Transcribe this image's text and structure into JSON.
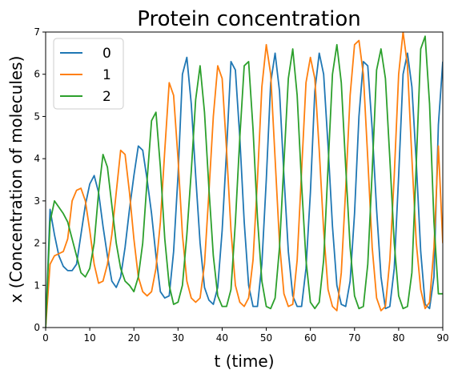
{
  "chart_data": {
    "type": "line",
    "title": "Protein concentration",
    "xlabel": "t (time)",
    "ylabel": "x (Concentration of molecules)",
    "xlim": [
      0,
      90
    ],
    "ylim": [
      0,
      7
    ],
    "xticks": [
      0,
      10,
      20,
      30,
      40,
      50,
      60,
      70,
      80,
      90
    ],
    "yticks": [
      0,
      1,
      2,
      3,
      4,
      5,
      6,
      7
    ],
    "grid": false,
    "legend_position": "top-left",
    "series": [
      {
        "name": "0",
        "color": "#1f77b4",
        "x": [
          0,
          1,
          2,
          3,
          4,
          5,
          6,
          7,
          8,
          9,
          10,
          11,
          12,
          13,
          14,
          15,
          16,
          17,
          18,
          19,
          20,
          21,
          22,
          23,
          24,
          25,
          26,
          27,
          28,
          29,
          30,
          31,
          32,
          33,
          34,
          35,
          36,
          37,
          38,
          39,
          40,
          41,
          42,
          43,
          44,
          45,
          46,
          47,
          48,
          49,
          50,
          51,
          52,
          53,
          54,
          55,
          56,
          57,
          58,
          59,
          60,
          61,
          62,
          63,
          64,
          65,
          66,
          67,
          68,
          69,
          70,
          71,
          72,
          73,
          74,
          75,
          76,
          77,
          78,
          79,
          80,
          81,
          82,
          83,
          84,
          85,
          86,
          87,
          88,
          89,
          90
        ],
        "values": [
          0,
          2.8,
          2.2,
          1.7,
          1.45,
          1.35,
          1.35,
          1.5,
          2.2,
          2.9,
          3.4,
          3.6,
          3.2,
          2.4,
          1.7,
          1.1,
          0.95,
          1.2,
          1.9,
          2.8,
          3.6,
          4.3,
          4.2,
          3.5,
          2.7,
          1.7,
          0.85,
          0.7,
          0.75,
          1.8,
          3.6,
          6.0,
          6.4,
          5.3,
          3.6,
          2.0,
          0.95,
          0.65,
          0.55,
          0.95,
          2.3,
          4.2,
          6.3,
          6.1,
          4.5,
          2.5,
          1.0,
          0.5,
          0.5,
          1.5,
          3.5,
          5.8,
          6.5,
          5.6,
          3.6,
          1.8,
          0.75,
          0.5,
          0.5,
          1.4,
          3.2,
          5.6,
          6.5,
          6.0,
          4.3,
          2.4,
          1.0,
          0.55,
          0.5,
          1.1,
          2.7,
          5.0,
          6.3,
          6.2,
          4.7,
          2.8,
          1.2,
          0.45,
          0.5,
          1.4,
          3.6,
          6.0,
          6.5,
          5.7,
          3.9,
          1.8,
          0.55,
          0.45,
          1.2,
          4.8,
          6.3
        ]
      },
      {
        "name": "1",
        "color": "#ff7f0e",
        "x": [
          0,
          1,
          2,
          3,
          4,
          5,
          6,
          7,
          8,
          9,
          10,
          11,
          12,
          13,
          14,
          15,
          16,
          17,
          18,
          19,
          20,
          21,
          22,
          23,
          24,
          25,
          26,
          27,
          28,
          29,
          30,
          31,
          32,
          33,
          34,
          35,
          36,
          37,
          38,
          39,
          40,
          41,
          42,
          43,
          44,
          45,
          46,
          47,
          48,
          49,
          50,
          51,
          52,
          53,
          54,
          55,
          56,
          57,
          58,
          59,
          60,
          61,
          62,
          63,
          64,
          65,
          66,
          67,
          68,
          69,
          70,
          71,
          72,
          73,
          74,
          75,
          76,
          77,
          78,
          79,
          80,
          81,
          82,
          83,
          84,
          85,
          86,
          87,
          88,
          89,
          90
        ],
        "values": [
          0,
          1.5,
          1.7,
          1.75,
          1.8,
          2.1,
          3.0,
          3.25,
          3.3,
          3.0,
          2.3,
          1.5,
          1.05,
          1.1,
          1.5,
          2.2,
          3.2,
          4.2,
          4.1,
          3.2,
          2.1,
          1.2,
          0.85,
          0.75,
          0.85,
          1.4,
          2.5,
          4.2,
          5.8,
          5.5,
          4.0,
          2.2,
          1.1,
          0.7,
          0.6,
          0.7,
          1.5,
          3.2,
          5.0,
          6.2,
          5.9,
          4.2,
          2.3,
          1.0,
          0.6,
          0.5,
          0.7,
          1.6,
          3.5,
          5.7,
          6.7,
          6.0,
          4.0,
          2.0,
          0.8,
          0.5,
          0.55,
          1.6,
          3.7,
          5.8,
          6.4,
          5.9,
          4.2,
          2.3,
          0.9,
          0.5,
          0.4,
          1.3,
          3.3,
          5.5,
          6.7,
          6.8,
          6.0,
          4.0,
          1.9,
          0.7,
          0.4,
          0.5,
          1.6,
          3.6,
          6.0,
          7.0,
          6.2,
          4.0,
          2.0,
          0.9,
          0.45,
          0.6,
          1.9,
          4.3,
          2.0
        ]
      },
      {
        "name": "2",
        "color": "#2ca02c",
        "x": [
          0,
          1,
          2,
          3,
          4,
          5,
          6,
          7,
          8,
          9,
          10,
          11,
          12,
          13,
          14,
          15,
          16,
          17,
          18,
          19,
          20,
          21,
          22,
          23,
          24,
          25,
          26,
          27,
          28,
          29,
          30,
          31,
          32,
          33,
          34,
          35,
          36,
          37,
          38,
          39,
          40,
          41,
          42,
          43,
          44,
          45,
          46,
          47,
          48,
          49,
          50,
          51,
          52,
          53,
          54,
          55,
          56,
          57,
          58,
          59,
          60,
          61,
          62,
          63,
          64,
          65,
          66,
          67,
          68,
          69,
          70,
          71,
          72,
          73,
          74,
          75,
          76,
          77,
          78,
          79,
          80,
          81,
          82,
          83,
          84,
          85,
          86,
          87,
          88,
          89,
          90
        ],
        "values": [
          0,
          2.5,
          3.0,
          2.85,
          2.7,
          2.5,
          2.1,
          1.7,
          1.3,
          1.2,
          1.4,
          2.0,
          3.2,
          4.1,
          3.8,
          2.9,
          2.0,
          1.4,
          1.1,
          1.0,
          0.85,
          1.2,
          2.0,
          3.5,
          4.9,
          5.1,
          3.8,
          2.1,
          1.0,
          0.55,
          0.6,
          1.0,
          2.2,
          3.7,
          5.4,
          6.2,
          5.1,
          3.3,
          1.7,
          0.75,
          0.5,
          0.5,
          0.9,
          2.5,
          4.5,
          6.2,
          6.3,
          4.7,
          2.6,
          1.1,
          0.5,
          0.45,
          0.7,
          1.9,
          3.9,
          5.9,
          6.6,
          5.5,
          3.4,
          1.6,
          0.6,
          0.45,
          0.6,
          1.6,
          3.8,
          6.0,
          6.7,
          5.8,
          3.8,
          1.9,
          0.75,
          0.45,
          0.5,
          1.5,
          3.7,
          6.1,
          6.6,
          5.9,
          4.0,
          2.0,
          0.75,
          0.45,
          0.5,
          1.3,
          3.9,
          6.6,
          6.9,
          5.3,
          2.5,
          0.8,
          0.8
        ]
      }
    ]
  }
}
